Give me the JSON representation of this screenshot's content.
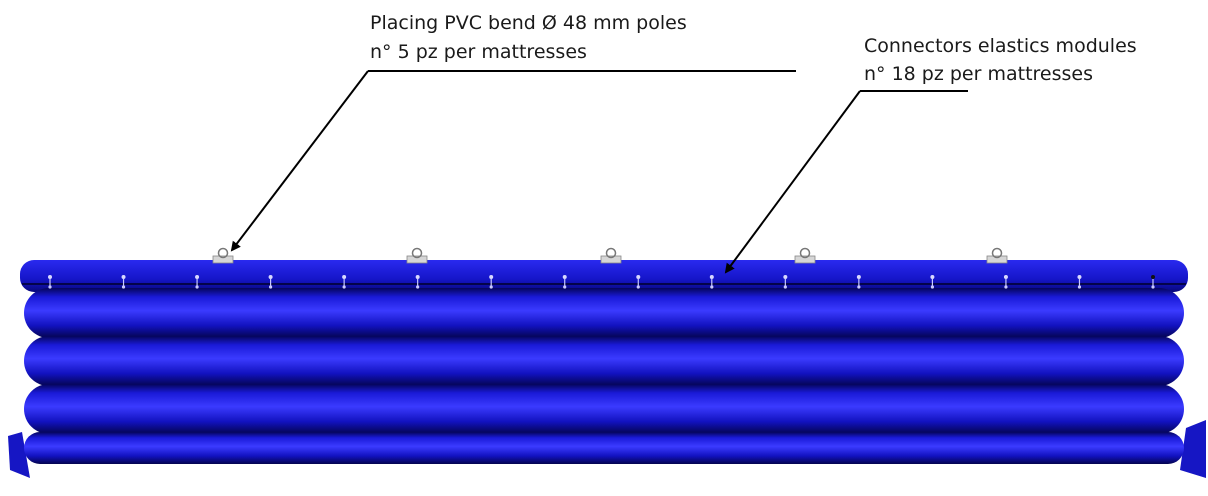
{
  "annotations": {
    "poles": {
      "line1": "Placing PVC bend Ø 48 mm poles",
      "line2": "n° 5 pz per mattresses"
    },
    "connectors": {
      "line1": "Connectors elastics modules",
      "line2": "n° 18 pz per mattresses"
    }
  },
  "colors": {
    "mattress_base": "#1414c8",
    "mattress_dark": "#06066e",
    "mattress_light": "#5a5aff",
    "fittings": "#d6d6d6",
    "leader_line": "#000000"
  }
}
